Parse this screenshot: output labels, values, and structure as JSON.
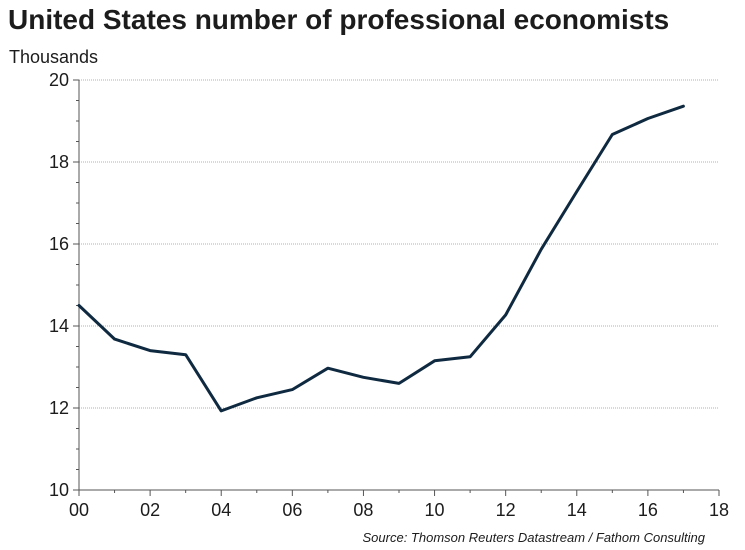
{
  "chart_data": {
    "type": "line",
    "title": "United States number of professional economists",
    "ylabel": "Thousands",
    "xlabel": "",
    "source": "Source: Thomson Reuters Datastream / Fathom Consulting",
    "xlim": [
      0,
      18
    ],
    "ylim": [
      10,
      20
    ],
    "x_ticks": [
      0,
      2,
      4,
      6,
      8,
      10,
      12,
      14,
      16,
      18
    ],
    "x_tick_labels": [
      "00",
      "02",
      "04",
      "06",
      "08",
      "10",
      "12",
      "14",
      "16",
      "18"
    ],
    "y_ticks": [
      10,
      12,
      14,
      16,
      18,
      20
    ],
    "y_tick_labels": [
      "10",
      "12",
      "14",
      "16",
      "18",
      "20"
    ],
    "grid": true,
    "line_color": "#0f2a40",
    "series": [
      {
        "x": [
          0,
          1,
          2,
          3,
          4,
          5,
          6,
          7,
          8,
          9,
          10,
          11,
          12,
          13,
          14,
          15,
          16,
          17
        ],
        "values": [
          14.5,
          13.68,
          13.4,
          13.3,
          11.93,
          12.25,
          12.45,
          12.97,
          12.75,
          12.6,
          13.15,
          13.25,
          14.27,
          15.87,
          17.28,
          18.67,
          19.06,
          19.36
        ]
      }
    ]
  }
}
